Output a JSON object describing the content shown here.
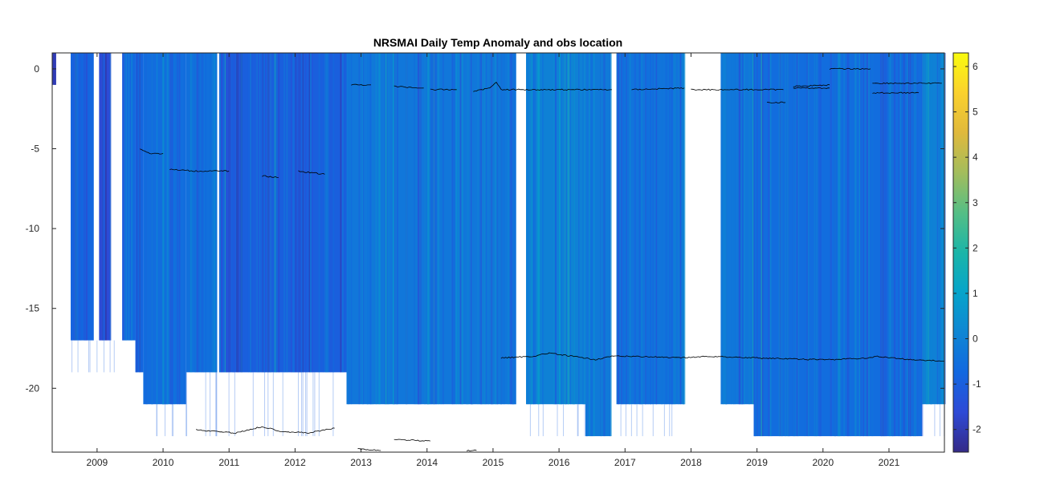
{
  "chart_data": {
    "type": "heatmap",
    "title": "NRSMAI Daily Temp Anomaly and obs location",
    "xlabel": "",
    "ylabel": "",
    "x_ticks": [
      "2009",
      "2010",
      "2011",
      "2012",
      "2013",
      "2014",
      "2015",
      "2016",
      "2017",
      "2018",
      "2019",
      "2020",
      "2021"
    ],
    "y_ticks": [
      "0",
      "-5",
      "-10",
      "-15",
      "-20"
    ],
    "xlim": [
      2008.32,
      2021.84
    ],
    "ylim": [
      -24,
      1
    ],
    "colorbar": {
      "ticks": [
        "6",
        "5",
        "4",
        "3",
        "2",
        "1",
        "0",
        "-1",
        "-2"
      ],
      "range": [
        -2.5,
        6.3
      ],
      "colormap": "parula"
    },
    "depth_coverage_segments": [
      {
        "x0": 2008.32,
        "x1": 2008.38,
        "bottom": -1,
        "value": -2.0
      },
      {
        "x0": 2008.6,
        "x1": 2008.95,
        "bottom": -17,
        "value": -0.8
      },
      {
        "x0": 2009.03,
        "x1": 2009.2,
        "bottom": -17,
        "value": -1.6
      },
      {
        "x0": 2009.38,
        "x1": 2009.58,
        "bottom": -17,
        "value": -0.7
      },
      {
        "x0": 2009.58,
        "x1": 2009.7,
        "bottom": -19,
        "value": -0.8
      },
      {
        "x0": 2009.7,
        "x1": 2010.35,
        "bottom": -21,
        "value": -0.6
      },
      {
        "x0": 2010.35,
        "x1": 2010.82,
        "bottom": -19,
        "value": -0.5
      },
      {
        "x0": 2010.85,
        "x1": 2012.78,
        "bottom": -19,
        "value": -1.0
      },
      {
        "x0": 2012.78,
        "x1": 2015.35,
        "bottom": -21,
        "value": -0.3
      },
      {
        "x0": 2015.5,
        "x1": 2016.4,
        "bottom": -21,
        "value": 0.0
      },
      {
        "x0": 2016.4,
        "x1": 2016.78,
        "bottom": -23,
        "value": -0.2
      },
      {
        "x0": 2016.87,
        "x1": 2017.9,
        "bottom": -21,
        "value": -0.4
      },
      {
        "x0": 2018.45,
        "x1": 2018.95,
        "bottom": -21,
        "value": -0.3
      },
      {
        "x0": 2018.95,
        "x1": 2021.5,
        "bottom": -23,
        "value": -0.6
      },
      {
        "x0": 2021.5,
        "x1": 2021.84,
        "bottom": -21,
        "value": 0.0
      }
    ],
    "obs_location_series": [
      {
        "points": [
          [
            2009.65,
            -5.0
          ],
          [
            2009.8,
            -5.3
          ],
          [
            2010.0,
            -5.3
          ]
        ]
      },
      {
        "points": [
          [
            2010.1,
            -6.3
          ],
          [
            2010.5,
            -6.4
          ],
          [
            2011.0,
            -6.4
          ]
        ]
      },
      {
        "points": [
          [
            2011.5,
            -6.7
          ],
          [
            2011.75,
            -6.8
          ]
        ]
      },
      {
        "points": [
          [
            2012.05,
            -6.4
          ],
          [
            2012.45,
            -6.6
          ]
        ]
      },
      {
        "points": [
          [
            2012.85,
            -1.0
          ],
          [
            2013.15,
            -1.0
          ]
        ]
      },
      {
        "points": [
          [
            2013.5,
            -1.1
          ],
          [
            2013.95,
            -1.2
          ]
        ]
      },
      {
        "points": [
          [
            2014.05,
            -1.3
          ],
          [
            2014.45,
            -1.3
          ]
        ]
      },
      {
        "points": [
          [
            2014.7,
            -1.4
          ],
          [
            2014.95,
            -1.2
          ],
          [
            2015.05,
            -0.8
          ],
          [
            2015.12,
            -1.3
          ],
          [
            2016.8,
            -1.3
          ]
        ]
      },
      {
        "points": [
          [
            2017.1,
            -1.3
          ],
          [
            2017.9,
            -1.2
          ]
        ]
      },
      {
        "points": [
          [
            2018.0,
            -1.3
          ],
          [
            2019.4,
            -1.3
          ]
        ]
      },
      {
        "points": [
          [
            2019.15,
            -2.1
          ],
          [
            2019.43,
            -2.1
          ]
        ]
      },
      {
        "points": [
          [
            2019.55,
            -1.2
          ],
          [
            2020.1,
            -1.2
          ]
        ]
      },
      {
        "points": [
          [
            2019.55,
            -1.1
          ],
          [
            2020.1,
            -1.0
          ]
        ]
      },
      {
        "points": [
          [
            2020.1,
            0.0
          ],
          [
            2020.72,
            0.0
          ]
        ]
      },
      {
        "points": [
          [
            2020.75,
            -0.9
          ],
          [
            2021.8,
            -0.9
          ]
        ]
      },
      {
        "points": [
          [
            2020.75,
            -1.5
          ],
          [
            2021.45,
            -1.5
          ]
        ]
      },
      {
        "points": [
          [
            2015.12,
            -18.1
          ],
          [
            2015.6,
            -18.0
          ],
          [
            2015.85,
            -17.8
          ],
          [
            2016.2,
            -18.0
          ],
          [
            2016.55,
            -18.2
          ],
          [
            2016.8,
            -18.0
          ],
          [
            2017.2,
            -18.0
          ],
          [
            2017.8,
            -18.1
          ],
          [
            2018.3,
            -18.0
          ],
          [
            2019.0,
            -18.1
          ],
          [
            2019.8,
            -18.2
          ],
          [
            2020.2,
            -18.2
          ],
          [
            2020.7,
            -18.1
          ],
          [
            2020.8,
            -18.0
          ],
          [
            2021.3,
            -18.2
          ],
          [
            2021.84,
            -18.3
          ]
        ]
      },
      {
        "points": [
          [
            2010.5,
            -22.6
          ],
          [
            2011.1,
            -22.8
          ],
          [
            2011.5,
            -22.4
          ],
          [
            2011.8,
            -22.7
          ],
          [
            2012.2,
            -22.8
          ],
          [
            2012.6,
            -22.5
          ]
        ]
      },
      {
        "points": [
          [
            2012.95,
            -23.8
          ],
          [
            2013.3,
            -23.9
          ]
        ]
      },
      {
        "points": [
          [
            2013.5,
            -23.2
          ],
          [
            2014.05,
            -23.3
          ]
        ]
      },
      {
        "points": [
          [
            2014.6,
            -23.9
          ],
          [
            2014.75,
            -23.9
          ]
        ]
      }
    ]
  }
}
